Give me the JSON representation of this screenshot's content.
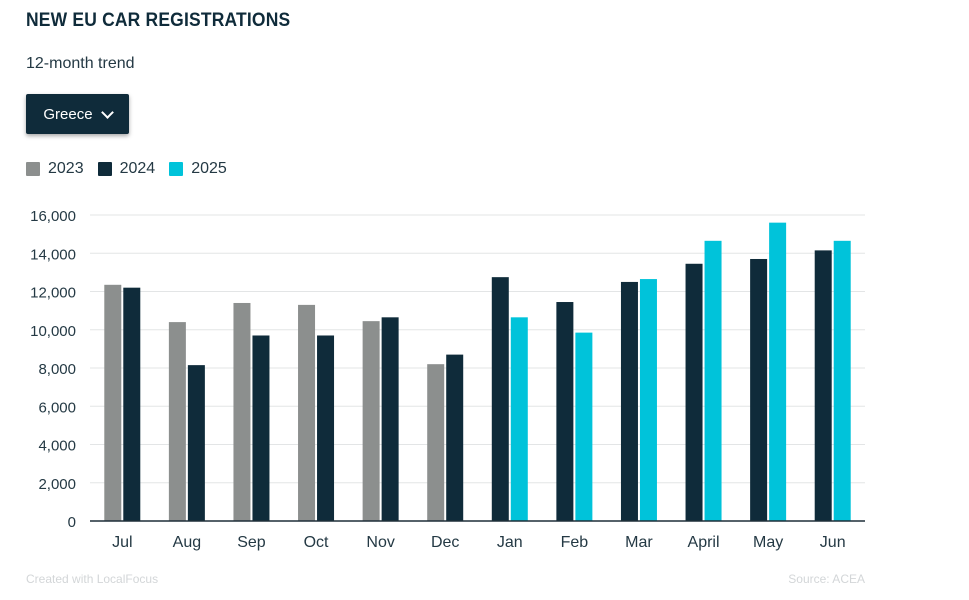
{
  "header": {
    "title": "NEW EU CAR REGISTRATIONS",
    "subtitle": "12-month trend"
  },
  "filter": {
    "selected": "Greece",
    "icon": "chevron-down-icon"
  },
  "footer": {
    "credit": "Created with LocalFocus",
    "source": "Source:  ACEA"
  },
  "colors": {
    "2023": "#8c8f8e",
    "2024": "#0f2b3a",
    "2025": "#00c3da"
  },
  "chart_data": {
    "type": "bar",
    "title": "NEW EU CAR REGISTRATIONS",
    "subtitle": "12-month trend",
    "categories": [
      "Jul",
      "Aug",
      "Sep",
      "Oct",
      "Nov",
      "Dec",
      "Jan",
      "Feb",
      "Mar",
      "April",
      "May",
      "Jun"
    ],
    "series": [
      {
        "name": "2023",
        "values": [
          12350,
          10400,
          11400,
          11300,
          10450,
          8200,
          null,
          null,
          null,
          null,
          null,
          null
        ]
      },
      {
        "name": "2024",
        "values": [
          12200,
          8150,
          9700,
          9700,
          10650,
          8700,
          12750,
          11450,
          12500,
          13450,
          13700,
          14150
        ]
      },
      {
        "name": "2025",
        "values": [
          null,
          null,
          null,
          null,
          null,
          null,
          10650,
          9850,
          12650,
          14650,
          15600,
          14650
        ]
      }
    ],
    "ylim": [
      0,
      16000
    ],
    "yticks": [
      0,
      2000,
      4000,
      6000,
      8000,
      10000,
      12000,
      14000,
      16000
    ],
    "ytick_labels": [
      "0",
      "2,000",
      "4,000",
      "6,000",
      "8,000",
      "10,000",
      "12,000",
      "14,000",
      "16,000"
    ],
    "grid": true,
    "legend": "top-left"
  }
}
